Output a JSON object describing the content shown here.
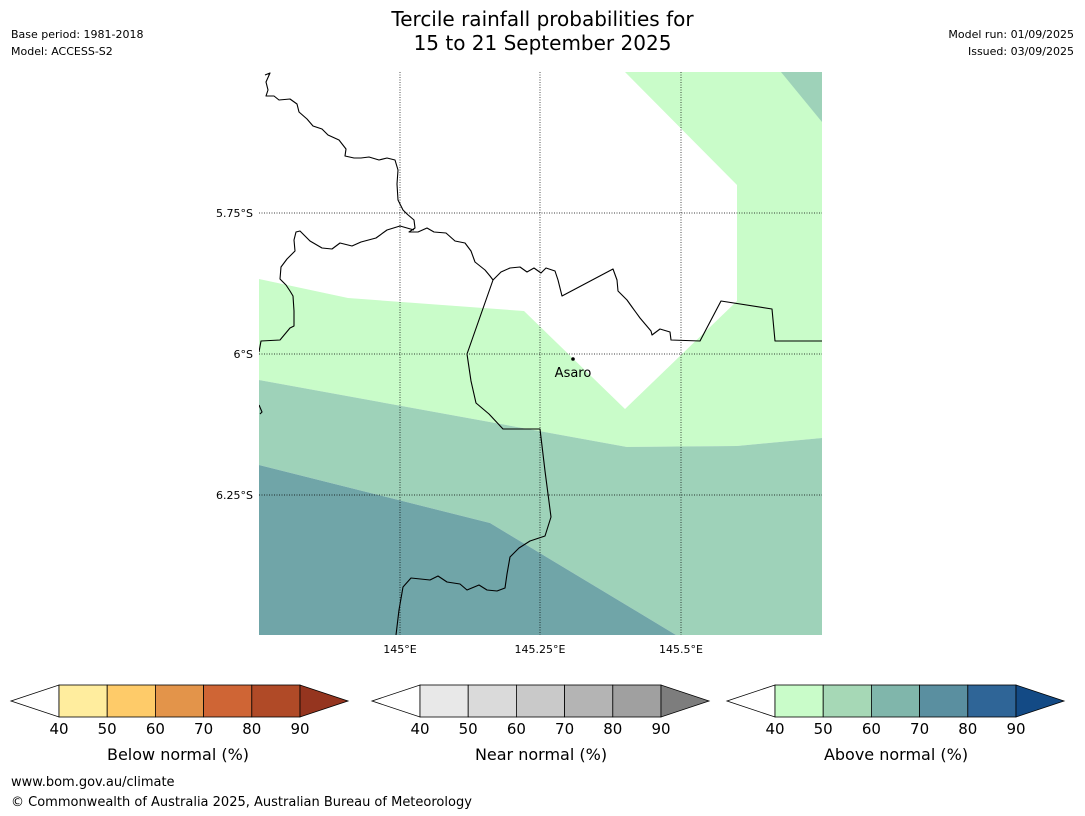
{
  "title": {
    "line1": "Tercile rainfall probabilities for",
    "line2": "15 to 21 September 2025"
  },
  "meta_left": {
    "base_period": "Base period: 1981-2018",
    "model": "Model: ACCESS-S2"
  },
  "meta_right": {
    "model_run": "Model run: 01/09/2025",
    "issued": "Issued: 03/09/2025"
  },
  "map": {
    "lat_labels": [
      "5.75°S",
      "6°S",
      "6.25°S"
    ],
    "lon_labels": [
      "145°E",
      "145.25°E",
      "145.5°E"
    ],
    "place": {
      "name": "Asaro"
    },
    "category_colors": {
      "above_40_50": "#c9fcc9",
      "above_50_60": "#9ed2b9",
      "above_60_70": "#70a5a8"
    }
  },
  "colorbars": [
    {
      "id": "below",
      "label": "Below normal (%)",
      "ticks": [
        "40",
        "50",
        "60",
        "70",
        "80",
        "90"
      ],
      "low_color": "#ffffff",
      "colors": [
        "#ffed9e",
        "#fecb69",
        "#e3944a",
        "#cf6535",
        "#b04a27"
      ],
      "high_color": "#95351f"
    },
    {
      "id": "near",
      "label": "Near normal (%)",
      "ticks": [
        "40",
        "50",
        "60",
        "70",
        "80",
        "90"
      ],
      "low_color": "#ffffff",
      "colors": [
        "#e8e8e8",
        "#dadada",
        "#c9c9c9",
        "#b4b4b4",
        "#a0a0a0"
      ],
      "high_color": "#7d7d7d"
    },
    {
      "id": "above",
      "label": "Above normal (%)",
      "ticks": [
        "40",
        "50",
        "60",
        "70",
        "80",
        "90"
      ],
      "low_color": "#ffffff",
      "colors": [
        "#c9fcc9",
        "#a6d8b6",
        "#80b6ab",
        "#5a8fa0",
        "#2f6597"
      ],
      "high_color": "#134a85"
    }
  ],
  "footer": {
    "url": "www.bom.gov.au/climate",
    "copyright": "© Commonwealth of Australia 2025, Australian Bureau of Meteorology"
  }
}
